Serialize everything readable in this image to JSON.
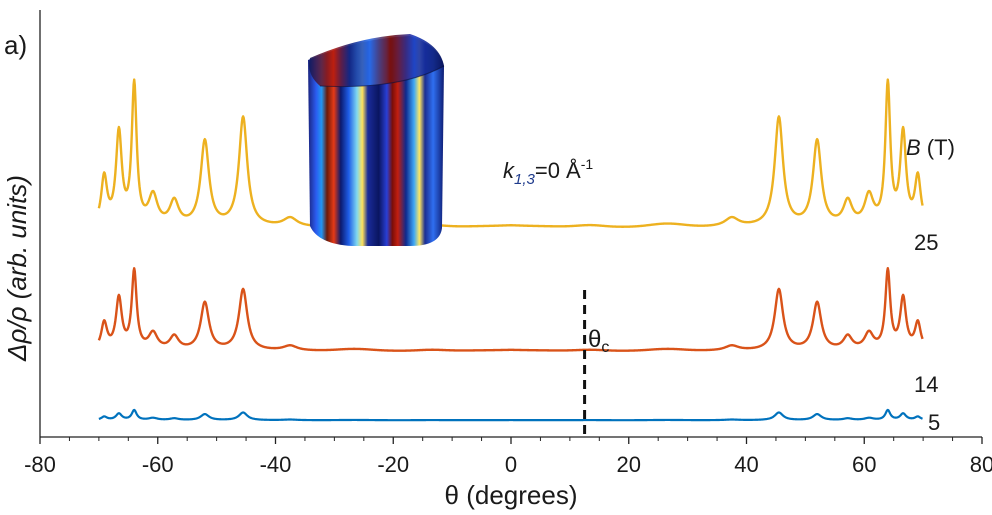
{
  "chart_data": {
    "type": "line",
    "panel_label": "a)",
    "xlabel": "θ (degrees)",
    "ylabel": "Δρ/ρ (arb. units)",
    "xlim": [
      -80,
      80
    ],
    "xticks": [
      -80,
      -60,
      -40,
      -20,
      0,
      20,
      40,
      60,
      80
    ],
    "x_range": [
      -70,
      70
    ],
    "annotation": {
      "k_main": "k",
      "k_sub": "1,3",
      "k_value": "=0 Å",
      "k_sup": "-1"
    },
    "field_header": {
      "symbol": "B",
      "unit": " (T)"
    },
    "critical_angle": {
      "label": "θ",
      "sub": "c",
      "x": 12.5
    },
    "peaks": [
      {
        "x": 45.5,
        "w": 0.85,
        "h": 1.0
      },
      {
        "x": 52.0,
        "w": 0.85,
        "h": 0.78
      },
      {
        "x": 57.2,
        "w": 0.9,
        "h": 0.22
      },
      {
        "x": 60.8,
        "w": 0.9,
        "h": 0.27
      },
      {
        "x": 64.0,
        "w": 0.5,
        "h": 1.28
      },
      {
        "x": 66.6,
        "w": 0.6,
        "h": 0.84
      },
      {
        "x": 69.1,
        "w": 0.6,
        "h": 0.44
      },
      {
        "x": 37.5,
        "w": 1.4,
        "h": 0.08
      }
    ],
    "series": [
      {
        "name": "25",
        "label": "25",
        "color": "#EDB120",
        "baseline": 0.5,
        "amplitude": 1.0
      },
      {
        "name": "14",
        "label": "14",
        "color": "#D95319",
        "baseline": 0.205,
        "amplitude": 0.56
      },
      {
        "name": "5",
        "label": "5",
        "color": "#0072BD",
        "baseline": 0.04,
        "amplitude": 0.07
      }
    ]
  }
}
